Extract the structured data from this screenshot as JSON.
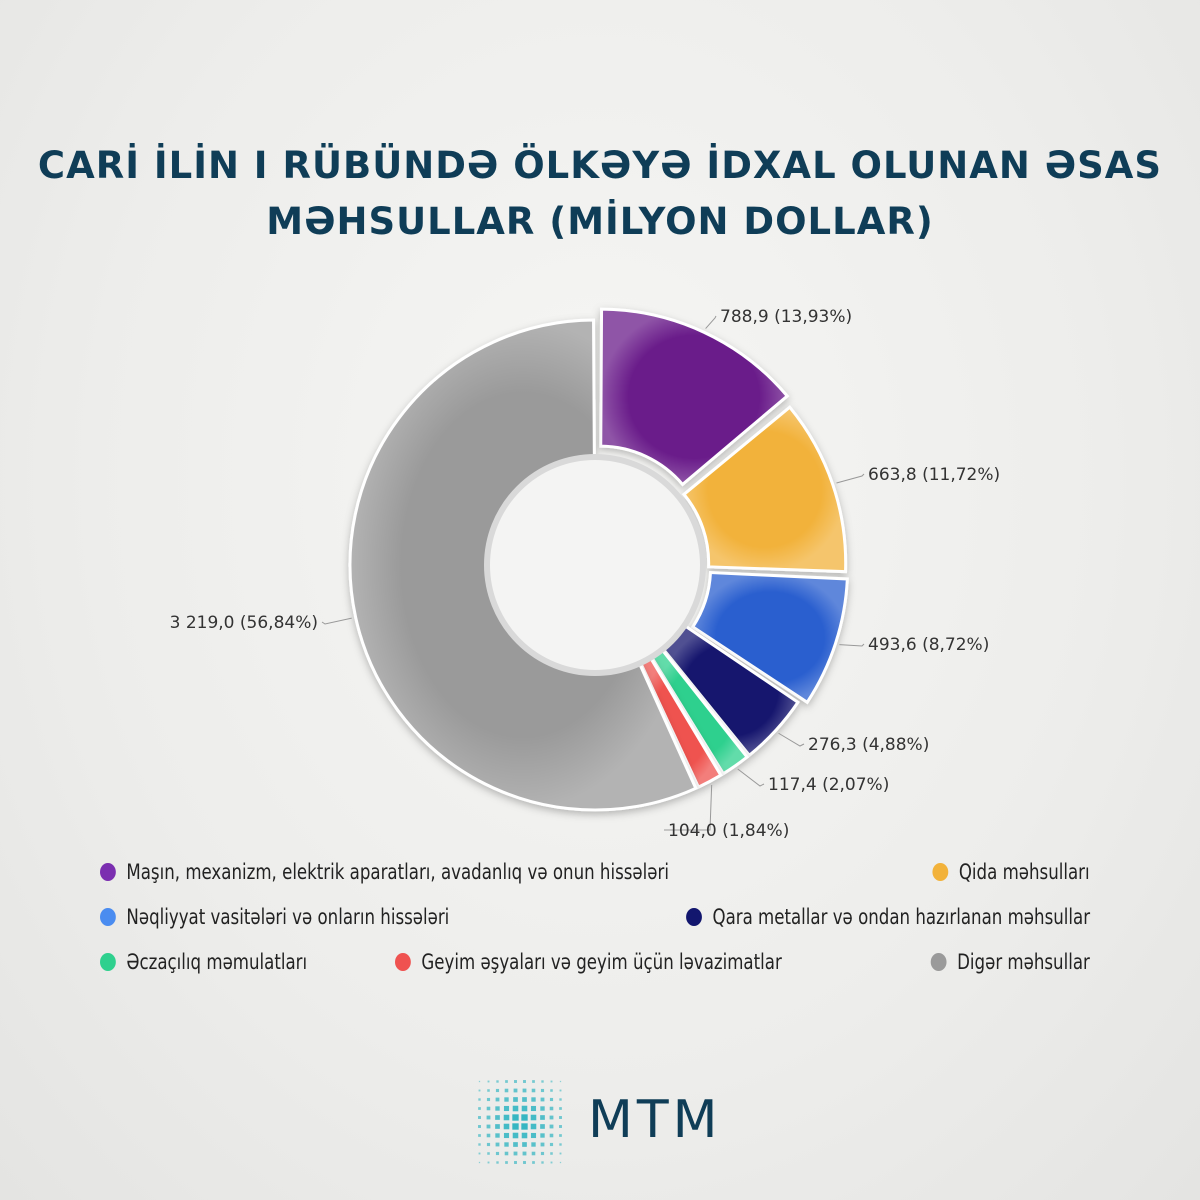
{
  "title": {
    "line1": "CARİ İLİN I RÜBÜNDƏ ÖLKƏYƏ İDXAL OLUNAN ƏSAS",
    "line2": "MƏHSULLAR (MİLYON DOLLAR)"
  },
  "chart_data": {
    "type": "pie",
    "donut": true,
    "title": "CARİ İLİN I RÜBÜNDƏ ÖLKƏYƏ İDXAL OLUNAN ƏSAS MƏHSULLAR (MİLYON DOLLAR)",
    "legend_position": "bottom",
    "slices": [
      {
        "name": "Maşın, mexanizm, elektrik aparatları, avadanlıq və onun hissələri",
        "value": 788.9,
        "percent": 13.93,
        "label": "788,9 (13,93%)",
        "color": "#6a1b8a"
      },
      {
        "name": "Qida məhsulları",
        "value": 663.8,
        "percent": 11.72,
        "label": "663,8 (11,72%)",
        "color": "#f2b23a"
      },
      {
        "name": "Nəqliyyat vasitələri və onların hissələri",
        "value": 493.6,
        "percent": 8.72,
        "label": "493,6 (8,72%)",
        "color": "#2a5fcf"
      },
      {
        "name": "Qara metallar və ondan hazırlanan məhsullar",
        "value": 276.3,
        "percent": 4.88,
        "label": "276,3 (4,88%)",
        "color": "#12166e"
      },
      {
        "name": "Əczaçılıq məmulatları",
        "value": 117.4,
        "percent": 2.07,
        "label": "117,4 (2,07%)",
        "color": "#2fd08e"
      },
      {
        "name": "Geyim əşyaları və geyim üçün ləvazimatlar",
        "value": 104.0,
        "percent": 1.84,
        "label": "104,0 (1,84%)",
        "color": "#ef5250"
      },
      {
        "name": "Digər məhsullar",
        "value": 3219.0,
        "percent": 56.84,
        "label": "3 219,0 (56,84%)",
        "color": "#9a9a9a"
      }
    ]
  },
  "legend": {
    "items": [
      {
        "label": "Maşın, mexanizm, elektrik aparatları, avadanlıq və onun hissələri",
        "color": "#7b2fb0"
      },
      {
        "label": "Qida məhsulları",
        "color": "#f2b23a"
      },
      {
        "label": "Nəqliyyat vasitələri və onların hissələri",
        "color": "#4a8cf0"
      },
      {
        "label": "Qara metallar və ondan hazırlanan məhsullar",
        "color": "#12166e"
      },
      {
        "label": "Əczaçılıq məmulatları",
        "color": "#2fd08e"
      },
      {
        "label": "Geyim əşyaları və geyim üçün ləvazimatlar",
        "color": "#ef5250"
      },
      {
        "label": "Digər məhsullar",
        "color": "#9a9a9a"
      }
    ]
  },
  "logo": {
    "text": "MTM",
    "color": "#0f3d57",
    "accent": "#2bb3c0"
  }
}
